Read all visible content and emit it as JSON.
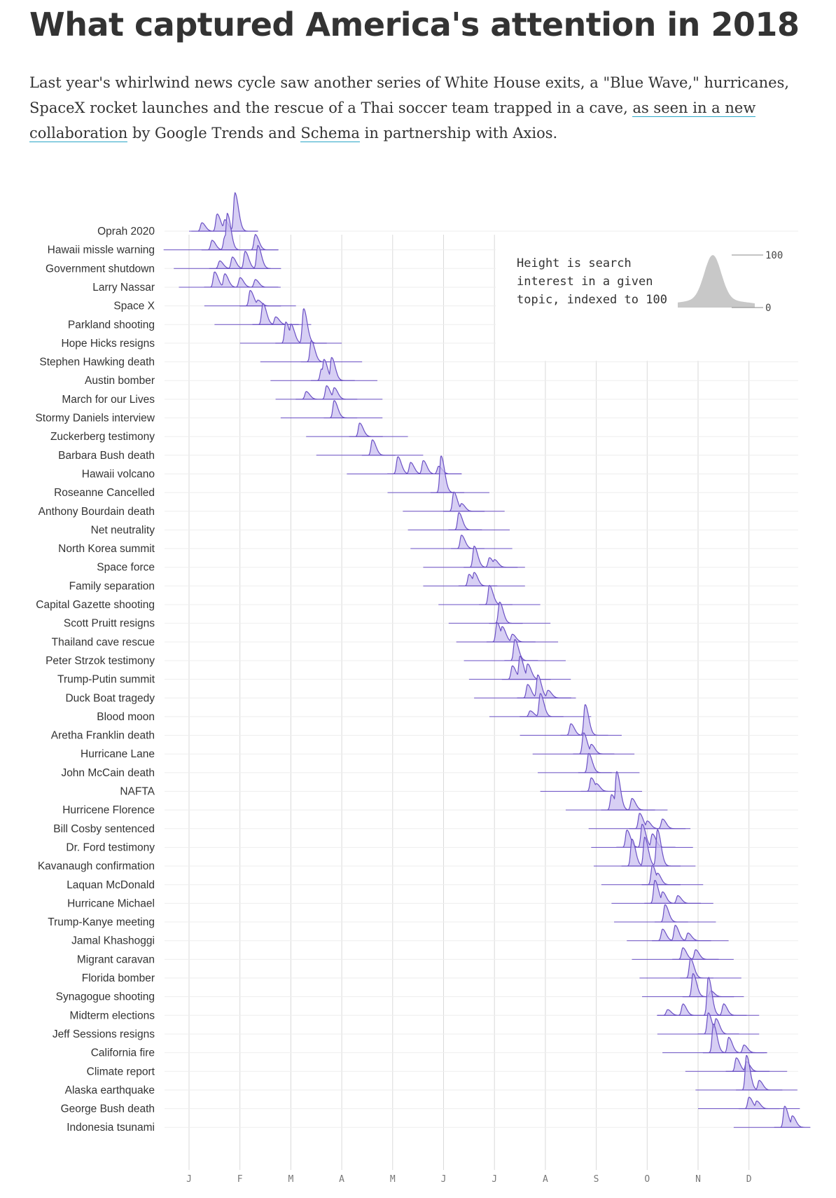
{
  "title": "What captured America's attention in 2018",
  "intro": {
    "text_before": "Last year's whirlwind news cycle saw another series of White House exits, a \"Blue Wave,\" hurricanes, SpaceX rocket launches and the rescue of a Thai soccer team trapped in a cave, ",
    "link1": "as seen in a new collaboration",
    "text_middle": " by Google Trends and ",
    "link2": "Schema",
    "text_after": " in partnership with Axios."
  },
  "legend": {
    "lines": [
      "Height is search",
      "interest in a given",
      "topic, indexed to 100"
    ],
    "max_label": "100",
    "min_label": "0"
  },
  "colors": {
    "fill": "#c9bff0",
    "stroke": "#6a4fc4",
    "baseline": "#6a4fc4",
    "grid": "#d9d9d9",
    "legend_fill": "#c8c8c8"
  },
  "chart_data": {
    "type": "ridgeline",
    "months": [
      "J",
      "F",
      "M",
      "A",
      "M",
      "J",
      "J",
      "A",
      "S",
      "O",
      "N",
      "D"
    ],
    "y_scale": [
      0,
      100
    ],
    "series": [
      {
        "name": "Oprah 2020",
        "range": [
          0.0,
          1.2
        ],
        "peaks": [
          [
            0.25,
            0.22
          ],
          [
            0.55,
            0.45
          ],
          [
            0.9,
            1.0
          ],
          [
            0.7,
            0.3
          ]
        ]
      },
      {
        "name": "Hawaii missle warning",
        "range": [
          -0.5,
          1.4
        ],
        "peaks": [
          [
            0.45,
            0.25
          ],
          [
            0.7,
            0.35
          ],
          [
            0.75,
            0.95
          ],
          [
            1.3,
            0.4
          ]
        ]
      },
      {
        "name": "Government shutdown",
        "range": [
          -0.3,
          1.6
        ],
        "peaks": [
          [
            0.6,
            0.2
          ],
          [
            0.85,
            0.3
          ],
          [
            1.1,
            0.45
          ],
          [
            1.35,
            0.6
          ]
        ]
      },
      {
        "name": "Larry Nassar",
        "range": [
          -0.2,
          1.8
        ],
        "peaks": [
          [
            0.5,
            0.4
          ],
          [
            0.7,
            0.35
          ],
          [
            1.0,
            0.25
          ],
          [
            1.3,
            0.2
          ]
        ]
      },
      {
        "name": "Space X",
        "range": [
          0.3,
          2.1
        ],
        "peaks": [
          [
            1.2,
            0.4
          ],
          [
            1.35,
            0.15
          ]
        ]
      },
      {
        "name": "Parkland shooting",
        "range": [
          0.5,
          2.4
        ],
        "peaks": [
          [
            1.45,
            0.55
          ],
          [
            1.7,
            0.2
          ]
        ]
      },
      {
        "name": "Hope Hicks resigns",
        "range": [
          1.0,
          3.0
        ],
        "peaks": [
          [
            1.9,
            0.55
          ],
          [
            2.0,
            0.5
          ],
          [
            2.25,
            0.9
          ]
        ]
      },
      {
        "name": "Stephen Hawking death",
        "range": [
          1.4,
          3.4
        ],
        "peaks": [
          [
            2.4,
            0.55
          ]
        ]
      },
      {
        "name": "Austin bomber",
        "range": [
          1.6,
          3.7
        ],
        "peaks": [
          [
            2.65,
            0.55
          ],
          [
            2.8,
            0.6
          ],
          [
            2.6,
            0.3
          ]
        ]
      },
      {
        "name": "March for our Lives",
        "range": [
          1.7,
          3.8
        ],
        "peaks": [
          [
            2.3,
            0.2
          ],
          [
            2.7,
            0.35
          ],
          [
            2.85,
            0.3
          ]
        ]
      },
      {
        "name": "Stormy Daniels interview",
        "range": [
          1.8,
          3.8
        ],
        "peaks": [
          [
            2.85,
            0.45
          ]
        ]
      },
      {
        "name": "Zuckerberg testimony",
        "range": [
          2.3,
          4.3
        ],
        "peaks": [
          [
            3.35,
            0.35
          ]
        ]
      },
      {
        "name": "Barbara Bush death",
        "range": [
          2.5,
          4.6
        ],
        "peaks": [
          [
            3.6,
            0.4
          ]
        ]
      },
      {
        "name": "Hawaii volcano",
        "range": [
          3.1,
          5.1
        ],
        "peaks": [
          [
            4.1,
            0.45
          ],
          [
            4.35,
            0.3
          ],
          [
            4.6,
            0.35
          ],
          [
            4.9,
            0.2
          ]
        ]
      },
      {
        "name": "Roseanne Cancelled",
        "range": [
          3.9,
          5.9
        ],
        "peaks": [
          [
            4.95,
            0.95
          ]
        ]
      },
      {
        "name": "Anthony Bourdain death",
        "range": [
          4.2,
          6.2
        ],
        "peaks": [
          [
            5.2,
            0.5
          ],
          [
            5.35,
            0.2
          ]
        ]
      },
      {
        "name": "Net neutrality",
        "range": [
          4.3,
          6.3
        ],
        "peaks": [
          [
            5.3,
            0.45
          ]
        ]
      },
      {
        "name": "North Korea summit",
        "range": [
          4.35,
          6.35
        ],
        "peaks": [
          [
            5.35,
            0.35
          ]
        ]
      },
      {
        "name": "Space force",
        "range": [
          4.6,
          6.6
        ],
        "peaks": [
          [
            5.6,
            0.55
          ],
          [
            5.9,
            0.25
          ],
          [
            6.0,
            0.2
          ]
        ]
      },
      {
        "name": "Family separation",
        "range": [
          4.6,
          6.6
        ],
        "peaks": [
          [
            5.5,
            0.3
          ],
          [
            5.6,
            0.35
          ]
        ]
      },
      {
        "name": "Capital Gazette shooting",
        "range": [
          4.9,
          6.9
        ],
        "peaks": [
          [
            5.9,
            0.5
          ]
        ]
      },
      {
        "name": "Scott Pruitt resigns",
        "range": [
          5.1,
          7.1
        ],
        "peaks": [
          [
            6.1,
            0.55
          ]
        ]
      },
      {
        "name": "Thailand cave rescue",
        "range": [
          5.25,
          7.25
        ],
        "peaks": [
          [
            6.05,
            0.5
          ],
          [
            6.15,
            0.4
          ],
          [
            6.35,
            0.2
          ]
        ]
      },
      {
        "name": "Peter Strzok testimony",
        "range": [
          5.4,
          7.4
        ],
        "peaks": [
          [
            6.4,
            0.55
          ]
        ]
      },
      {
        "name": "Trump-Putin summit",
        "range": [
          5.5,
          7.5
        ],
        "peaks": [
          [
            6.35,
            0.35
          ],
          [
            6.5,
            0.6
          ],
          [
            6.65,
            0.4
          ]
        ]
      },
      {
        "name": "Duck Boat tragedy",
        "range": [
          5.6,
          7.6
        ],
        "peaks": [
          [
            6.65,
            0.35
          ],
          [
            6.85,
            0.6
          ],
          [
            7.05,
            0.2
          ]
        ]
      },
      {
        "name": "Blood moon",
        "range": [
          5.9,
          7.9
        ],
        "peaks": [
          [
            6.9,
            0.6
          ],
          [
            6.7,
            0.15
          ]
        ]
      },
      {
        "name": "Aretha Franklin death",
        "range": [
          6.5,
          8.5
        ],
        "peaks": [
          [
            7.5,
            0.3
          ],
          [
            7.78,
            0.8
          ]
        ]
      },
      {
        "name": "Hurricane Lane",
        "range": [
          6.75,
          8.75
        ],
        "peaks": [
          [
            7.75,
            0.55
          ],
          [
            7.9,
            0.25
          ]
        ]
      },
      {
        "name": "John McCain death",
        "range": [
          6.85,
          8.85
        ],
        "peaks": [
          [
            7.85,
            0.5
          ]
        ]
      },
      {
        "name": "NAFTA",
        "range": [
          6.9,
          8.9
        ],
        "peaks": [
          [
            7.9,
            0.35
          ],
          [
            8.0,
            0.2
          ]
        ]
      },
      {
        "name": "Hurricene Florence",
        "range": [
          7.4,
          9.4
        ],
        "peaks": [
          [
            8.4,
            1.0
          ],
          [
            8.3,
            0.4
          ],
          [
            8.7,
            0.3
          ]
        ]
      },
      {
        "name": "Bill Cosby sentenced",
        "range": [
          7.85,
          9.85
        ],
        "peaks": [
          [
            8.85,
            0.4
          ],
          [
            9.0,
            0.2
          ],
          [
            9.3,
            0.25
          ]
        ]
      },
      {
        "name": "Dr. Ford testimony",
        "range": [
          7.9,
          9.9
        ],
        "peaks": [
          [
            8.6,
            0.45
          ],
          [
            8.9,
            0.6
          ],
          [
            9.1,
            0.35
          ]
        ]
      },
      {
        "name": "Kavanaugh confirmation",
        "range": [
          7.95,
          9.95
        ],
        "peaks": [
          [
            8.7,
            0.7
          ],
          [
            8.95,
            0.75
          ],
          [
            9.2,
            0.95
          ]
        ]
      },
      {
        "name": "Laquan McDonald",
        "range": [
          8.1,
          10.1
        ],
        "peaks": [
          [
            9.1,
            0.5
          ],
          [
            9.2,
            0.3
          ]
        ]
      },
      {
        "name": "Hurricane Michael",
        "range": [
          8.3,
          10.3
        ],
        "peaks": [
          [
            9.15,
            0.6
          ],
          [
            9.3,
            0.3
          ],
          [
            9.6,
            0.2
          ]
        ]
      },
      {
        "name": "Trump-Kanye meeting",
        "range": [
          8.35,
          10.35
        ],
        "peaks": [
          [
            9.35,
            0.45
          ]
        ]
      },
      {
        "name": "Jamal Khashoggi",
        "range": [
          8.6,
          10.6
        ],
        "peaks": [
          [
            9.3,
            0.3
          ],
          [
            9.55,
            0.4
          ],
          [
            9.8,
            0.2
          ]
        ]
      },
      {
        "name": "Migrant caravan",
        "range": [
          8.7,
          10.7
        ],
        "peaks": [
          [
            9.7,
            0.3
          ],
          [
            9.95,
            0.25
          ]
        ]
      },
      {
        "name": "Florida bomber",
        "range": [
          8.85,
          10.85
        ],
        "peaks": [
          [
            9.85,
            0.5
          ]
        ]
      },
      {
        "name": "Synagogue shooting",
        "range": [
          8.9,
          10.9
        ],
        "peaks": [
          [
            9.9,
            0.6
          ],
          [
            10.25,
            0.15
          ]
        ]
      },
      {
        "name": "Midterm elections",
        "range": [
          9.2,
          11.2
        ],
        "peaks": [
          [
            10.2,
            1.0
          ],
          [
            9.7,
            0.3
          ],
          [
            9.4,
            0.15
          ],
          [
            10.5,
            0.3
          ]
        ]
      },
      {
        "name": "Jeff Sessions resigns",
        "range": [
          9.2,
          11.2
        ],
        "peaks": [
          [
            10.2,
            0.55
          ],
          [
            10.35,
            0.4
          ]
        ]
      },
      {
        "name": "California fire",
        "range": [
          9.3,
          11.3
        ],
        "peaks": [
          [
            10.3,
            0.75
          ],
          [
            10.6,
            0.4
          ],
          [
            10.9,
            0.2
          ]
        ]
      },
      {
        "name": "Climate report",
        "range": [
          9.75,
          11.75
        ],
        "peaks": [
          [
            10.75,
            0.35
          ],
          [
            10.95,
            0.25
          ]
        ]
      },
      {
        "name": "Alaska earthquake",
        "range": [
          9.95,
          11.95
        ],
        "peaks": [
          [
            10.95,
            0.9
          ],
          [
            11.2,
            0.25
          ]
        ]
      },
      {
        "name": "George Bush death",
        "range": [
          10.0,
          12.0
        ],
        "peaks": [
          [
            11.0,
            0.3
          ],
          [
            11.15,
            0.2
          ]
        ]
      },
      {
        "name": "Indonesia tsunami",
        "range": [
          10.7,
          12.0
        ],
        "peaks": [
          [
            11.7,
            0.55
          ],
          [
            11.85,
            0.3
          ]
        ]
      }
    ]
  }
}
